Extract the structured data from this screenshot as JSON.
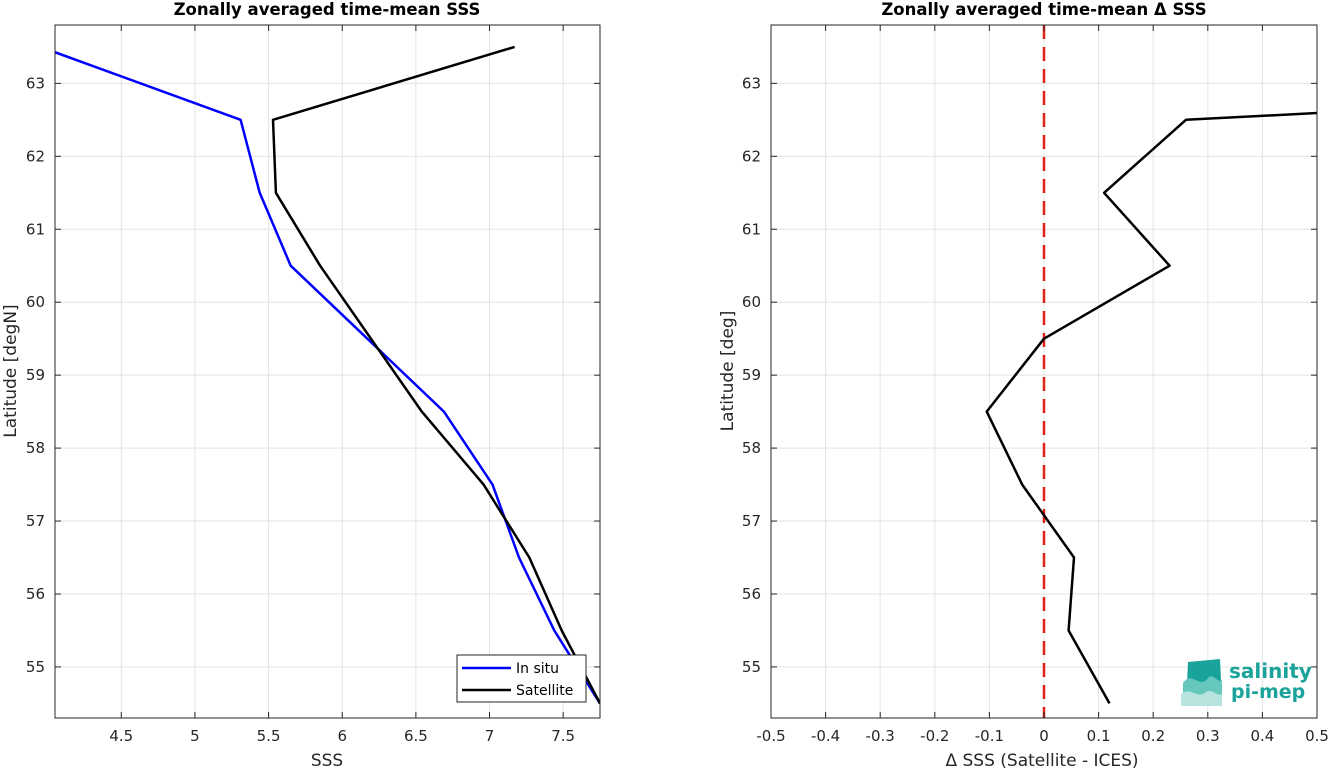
{
  "chart_data": [
    {
      "type": "line",
      "title": "Zonally averaged time-mean SSS",
      "xlabel": "SSS",
      "ylabel": "Latitude [degN]",
      "xlim": [
        4.05,
        7.75
      ],
      "ylim": [
        54.3,
        63.8
      ],
      "xticks": [
        4.5,
        5,
        5.5,
        6,
        6.5,
        7,
        7.5
      ],
      "xtick_labels": [
        "4.5",
        "5",
        "5.5",
        "6",
        "6.5",
        "7",
        "7.5"
      ],
      "yticks": [
        55,
        56,
        57,
        58,
        59,
        60,
        61,
        62,
        63
      ],
      "ytick_labels": [
        "55",
        "56",
        "57",
        "58",
        "59",
        "60",
        "61",
        "62",
        "63"
      ],
      "grid": true,
      "legend": "bottom-right",
      "series": [
        {
          "name": "In situ",
          "color": "#0000ff",
          "x": [
            3.95,
            5.31,
            5.44,
            5.65,
            6.69,
            7.02,
            7.2,
            7.44,
            7.75
          ],
          "y": [
            63.5,
            62.5,
            61.5,
            60.5,
            58.5,
            57.5,
            56.5,
            55.5,
            54.5
          ]
        },
        {
          "name": "Satellite",
          "color": "#000000",
          "x": [
            7.17,
            5.53,
            5.55,
            5.85,
            6.54,
            6.96,
            7.27,
            7.49,
            7.75
          ],
          "y": [
            63.5,
            62.5,
            61.5,
            60.5,
            58.5,
            57.5,
            56.5,
            55.5,
            54.5
          ]
        }
      ]
    },
    {
      "type": "line",
      "title": "Zonally averaged time-mean Δ SSS",
      "xlabel": "Δ SSS (Satellite - ICES)",
      "ylabel": "Latitude [deg]",
      "xlim": [
        -0.5,
        0.5
      ],
      "ylim": [
        54.3,
        63.8
      ],
      "xticks": [
        -0.5,
        -0.4,
        -0.3,
        -0.2,
        -0.1,
        0,
        0.1,
        0.2,
        0.3,
        0.4,
        0.5
      ],
      "xtick_labels": [
        "-0.5",
        "-0.4",
        "-0.3",
        "-0.2",
        "-0.1",
        "0",
        "0.1",
        "0.2",
        "0.3",
        "0.4",
        "0.5"
      ],
      "yticks": [
        55,
        56,
        57,
        58,
        59,
        60,
        61,
        62,
        63
      ],
      "ytick_labels": [
        "55",
        "56",
        "57",
        "58",
        "59",
        "60",
        "61",
        "62",
        "63"
      ],
      "grid": true,
      "reference_line": {
        "x": 0,
        "color": "#e0201b",
        "style": "dashed"
      },
      "series": [
        {
          "color": "#000000",
          "x": [
            0.52,
            0.26,
            0.11,
            0.23,
            0.0,
            -0.105,
            -0.04,
            0.055,
            0.045,
            0.12
          ],
          "y": [
            62.6,
            62.5,
            61.5,
            60.5,
            59.5,
            58.5,
            57.5,
            56.5,
            55.5,
            54.5
          ]
        }
      ]
    }
  ],
  "logo": {
    "line1": "salinity",
    "line2": "pi-mep"
  }
}
